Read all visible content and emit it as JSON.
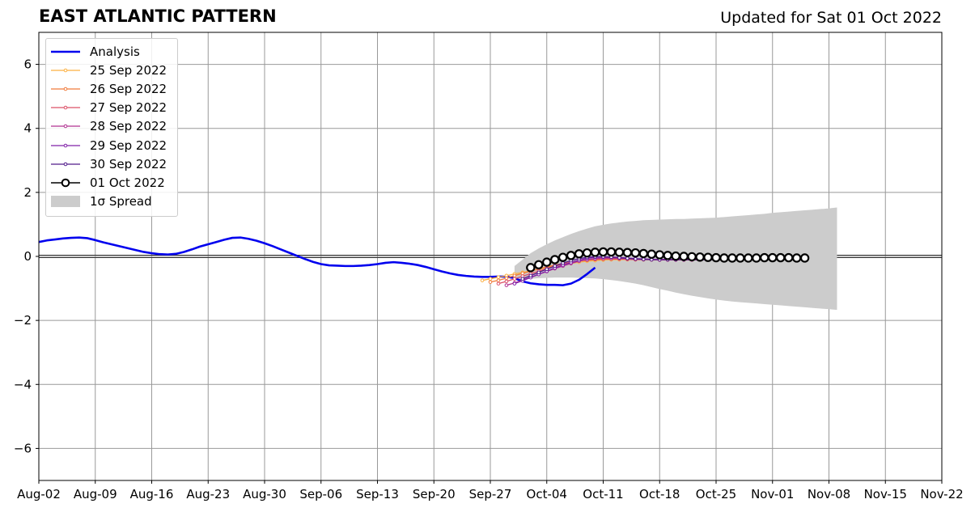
{
  "title": "EAST ATLANTIC PATTERN",
  "subtitle": "Updated for Sat 01 Oct 2022",
  "chart_data": {
    "type": "line",
    "title": "EAST ATLANTIC PATTERN",
    "xlabel": "",
    "ylabel": "",
    "ylim": [
      -7,
      7
    ],
    "xlim": [
      "2022-08-02",
      "2022-11-22"
    ],
    "x_tick_labels": [
      "Aug-02",
      "Aug-09",
      "Aug-16",
      "Aug-23",
      "Aug-30",
      "Sep-06",
      "Sep-13",
      "Sep-20",
      "Sep-27",
      "Oct-04",
      "Oct-11",
      "Oct-18",
      "Oct-25",
      "Nov-01",
      "Nov-08",
      "Nov-15",
      "Nov-22"
    ],
    "y_tick_labels": [
      "−6",
      "−4",
      "−2",
      "0",
      "2",
      "4",
      "6"
    ],
    "y_ticks": [
      -6,
      -4,
      -2,
      0,
      2,
      4,
      6
    ],
    "grid": true,
    "legend_position": "top-left",
    "series": [
      {
        "name": "Analysis",
        "color": "#0000ee",
        "start": "2022-08-02",
        "values": [
          0.45,
          0.5,
          0.53,
          0.56,
          0.58,
          0.59,
          0.57,
          0.51,
          0.44,
          0.38,
          0.32,
          0.26,
          0.2,
          0.14,
          0.1,
          0.07,
          0.06,
          0.08,
          0.14,
          0.22,
          0.31,
          0.38,
          0.45,
          0.52,
          0.58,
          0.59,
          0.55,
          0.49,
          0.41,
          0.32,
          0.22,
          0.12,
          0.02,
          -0.08,
          -0.17,
          -0.24,
          -0.28,
          -0.29,
          -0.3,
          -0.3,
          -0.29,
          -0.27,
          -0.24,
          -0.2,
          -0.18,
          -0.2,
          -0.23,
          -0.27,
          -0.33,
          -0.4,
          -0.47,
          -0.53,
          -0.58,
          -0.61,
          -0.63,
          -0.64,
          -0.64,
          -0.63,
          -0.63,
          -0.68,
          -0.78,
          -0.84,
          -0.87,
          -0.89,
          -0.89,
          -0.9,
          -0.85,
          -0.73,
          -0.55,
          -0.35
        ]
      },
      {
        "name": "25 Sep 2022",
        "color": "#fcb040",
        "start": "2022-09-26",
        "values": [
          -0.75,
          -0.7,
          -0.65,
          -0.6,
          -0.55,
          -0.5,
          -0.45,
          -0.4,
          -0.35,
          -0.3,
          -0.25,
          -0.22,
          -0.18,
          -0.15,
          -0.13,
          -0.11,
          -0.1,
          -0.1,
          -0.1,
          -0.1,
          -0.1,
          -0.1,
          -0.1,
          -0.1,
          -0.1,
          -0.1
        ]
      },
      {
        "name": "26 Sep 2022",
        "color": "#f07a3a",
        "start": "2022-09-27",
        "values": [
          -0.8,
          -0.75,
          -0.68,
          -0.6,
          -0.53,
          -0.46,
          -0.39,
          -0.33,
          -0.27,
          -0.22,
          -0.18,
          -0.14,
          -0.12,
          -0.1,
          -0.09,
          -0.08,
          -0.08,
          -0.08,
          -0.09,
          -0.09,
          -0.1,
          -0.1,
          -0.1,
          -0.1,
          -0.1,
          -0.1
        ]
      },
      {
        "name": "27 Sep 2022",
        "color": "#dc5068",
        "start": "2022-09-28",
        "values": [
          -0.85,
          -0.78,
          -0.7,
          -0.62,
          -0.54,
          -0.46,
          -0.38,
          -0.31,
          -0.24,
          -0.18,
          -0.14,
          -0.11,
          -0.09,
          -0.08,
          -0.08,
          -0.08,
          -0.09,
          -0.1,
          -0.1,
          -0.1,
          -0.11,
          -0.11,
          -0.11,
          -0.11,
          -0.11,
          -0.11
        ]
      },
      {
        "name": "28 Sep 2022",
        "color": "#b03090",
        "start": "2022-09-29",
        "values": [
          -0.9,
          -0.83,
          -0.74,
          -0.65,
          -0.56,
          -0.47,
          -0.38,
          -0.3,
          -0.22,
          -0.15,
          -0.1,
          -0.07,
          -0.05,
          -0.05,
          -0.06,
          -0.07,
          -0.08,
          -0.09,
          -0.1,
          -0.1,
          -0.1,
          -0.1,
          -0.1,
          -0.1,
          -0.1,
          -0.1
        ]
      },
      {
        "name": "29 Sep 2022",
        "color": "#8020a8",
        "start": "2022-09-30",
        "values": [
          -0.85,
          -0.76,
          -0.66,
          -0.56,
          -0.46,
          -0.36,
          -0.27,
          -0.19,
          -0.12,
          -0.06,
          -0.03,
          -0.02,
          -0.02,
          -0.03,
          -0.05,
          -0.07,
          -0.08,
          -0.09,
          -0.1,
          -0.1,
          -0.1,
          -0.1,
          -0.1,
          -0.1,
          -0.1,
          -0.1
        ]
      },
      {
        "name": "30 Sep 2022",
        "color": "#501a8a",
        "start": "2022-10-01",
        "values": [
          -0.7,
          -0.6,
          -0.5,
          -0.4,
          -0.3,
          -0.21,
          -0.13,
          -0.07,
          -0.03,
          -0.01,
          -0.01,
          -0.02,
          -0.04,
          -0.06,
          -0.08,
          -0.09,
          -0.1,
          -0.1,
          -0.1,
          -0.1,
          -0.1,
          -0.1,
          -0.1,
          -0.1,
          -0.1,
          -0.1
        ]
      },
      {
        "name": "01 Oct 2022",
        "color": "#000000",
        "start": "2022-10-02",
        "values": [
          -0.35,
          -0.26,
          -0.18,
          -0.1,
          -0.03,
          0.03,
          0.08,
          0.11,
          0.13,
          0.14,
          0.14,
          0.13,
          0.12,
          0.11,
          0.09,
          0.07,
          0.05,
          0.03,
          0.01,
          0.0,
          -0.01,
          -0.02,
          -0.03,
          -0.04,
          -0.05,
          -0.05,
          -0.05,
          -0.05,
          -0.05,
          -0.04,
          -0.04,
          -0.04,
          -0.04,
          -0.05,
          -0.05
        ]
      }
    ],
    "spread": {
      "name": "1σ Spread",
      "color": "#cccccc",
      "start": "2022-09-30",
      "upper": [
        -0.3,
        -0.1,
        0.1,
        0.25,
        0.38,
        0.5,
        0.6,
        0.7,
        0.79,
        0.87,
        0.94,
        0.99,
        1.03,
        1.06,
        1.09,
        1.11,
        1.13,
        1.14,
        1.15,
        1.16,
        1.17,
        1.17,
        1.18,
        1.19,
        1.2,
        1.21,
        1.23,
        1.25,
        1.27,
        1.29,
        1.31,
        1.33,
        1.36,
        1.38,
        1.4,
        1.42,
        1.44,
        1.46,
        1.48,
        1.5,
        1.53
      ],
      "lower": [
        -0.75,
        -0.72,
        -0.7,
        -0.68,
        -0.67,
        -0.66,
        -0.66,
        -0.66,
        -0.67,
        -0.68,
        -0.69,
        -0.71,
        -0.74,
        -0.77,
        -0.81,
        -0.85,
        -0.9,
        -0.96,
        -1.02,
        -1.07,
        -1.13,
        -1.18,
        -1.23,
        -1.27,
        -1.31,
        -1.35,
        -1.38,
        -1.41,
        -1.43,
        -1.45,
        -1.47,
        -1.49,
        -1.51,
        -1.53,
        -1.55,
        -1.57,
        -1.59,
        -1.61,
        -1.63,
        -1.65,
        -1.67
      ]
    }
  },
  "legend": {
    "items": [
      {
        "label": "Analysis",
        "color": "#0000ee",
        "kind": "line"
      },
      {
        "label": "25 Sep 2022",
        "color": "#fcb040",
        "kind": "marker-line"
      },
      {
        "label": "26 Sep 2022",
        "color": "#f07a3a",
        "kind": "marker-line"
      },
      {
        "label": "27 Sep 2022",
        "color": "#dc5068",
        "kind": "marker-line"
      },
      {
        "label": "28 Sep 2022",
        "color": "#b03090",
        "kind": "marker-line"
      },
      {
        "label": "29 Sep 2022",
        "color": "#8020a8",
        "kind": "marker-line"
      },
      {
        "label": "30 Sep 2022",
        "color": "#501a8a",
        "kind": "marker-line"
      },
      {
        "label": "01 Oct 2022",
        "color": "#000000",
        "kind": "circle-line"
      },
      {
        "label": "1σ Spread",
        "color": "#cccccc",
        "kind": "patch"
      }
    ]
  }
}
